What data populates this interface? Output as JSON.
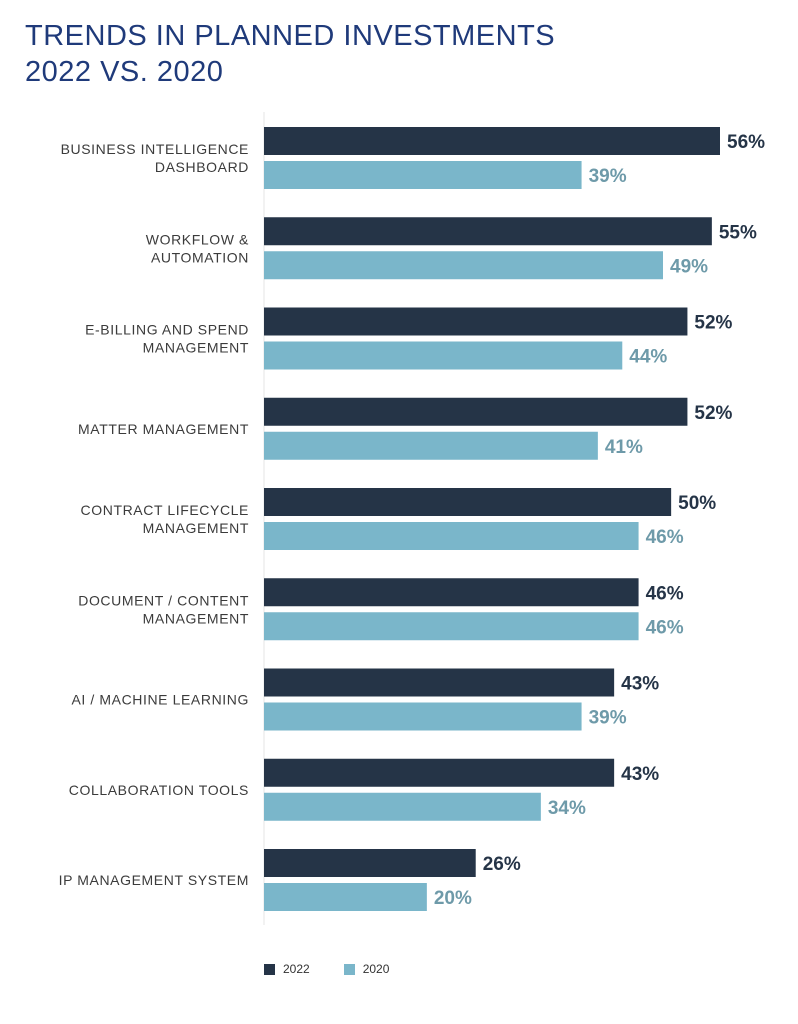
{
  "chart_data": {
    "type": "bar",
    "orientation": "horizontal",
    "title": [
      "TRENDS IN PLANNED INVESTMENTS",
      "2022 VS. 2020"
    ],
    "categories": [
      [
        "BUSINESS INTELLIGENCE",
        "DASHBOARD"
      ],
      [
        "WORKFLOW &",
        "AUTOMATION"
      ],
      [
        "E-BILLING AND SPEND",
        "MANAGEMENT"
      ],
      [
        "MATTER MANAGEMENT"
      ],
      [
        "CONTRACT LIFECYCLE",
        "MANAGEMENT"
      ],
      [
        "DOCUMENT / CONTENT",
        "MANAGEMENT"
      ],
      [
        "AI / MACHINE LEARNING"
      ],
      [
        "COLLABORATION TOOLS"
      ],
      [
        "IP MANAGEMENT SYSTEM"
      ]
    ],
    "series": [
      {
        "name": "2022",
        "color": "#253447",
        "label_color": "#253447",
        "values": [
          56,
          55,
          52,
          52,
          50,
          46,
          43,
          43,
          26
        ],
        "labels": [
          "56%",
          "55%",
          "52%",
          "52%",
          "50%",
          "46%",
          "43%",
          "43%",
          "26%"
        ]
      },
      {
        "name": "2020",
        "color": "#7ab6ca",
        "label_color": "#6e9aa9",
        "values": [
          39,
          49,
          44,
          41,
          46,
          46,
          39,
          34,
          20
        ],
        "labels": [
          "39%",
          "49%",
          "44%",
          "41%",
          "46%",
          "46%",
          "39%",
          "34%",
          "20%"
        ]
      }
    ],
    "xlim": [
      0,
      56
    ],
    "grid": false,
    "legend_position": "bottom-left"
  }
}
